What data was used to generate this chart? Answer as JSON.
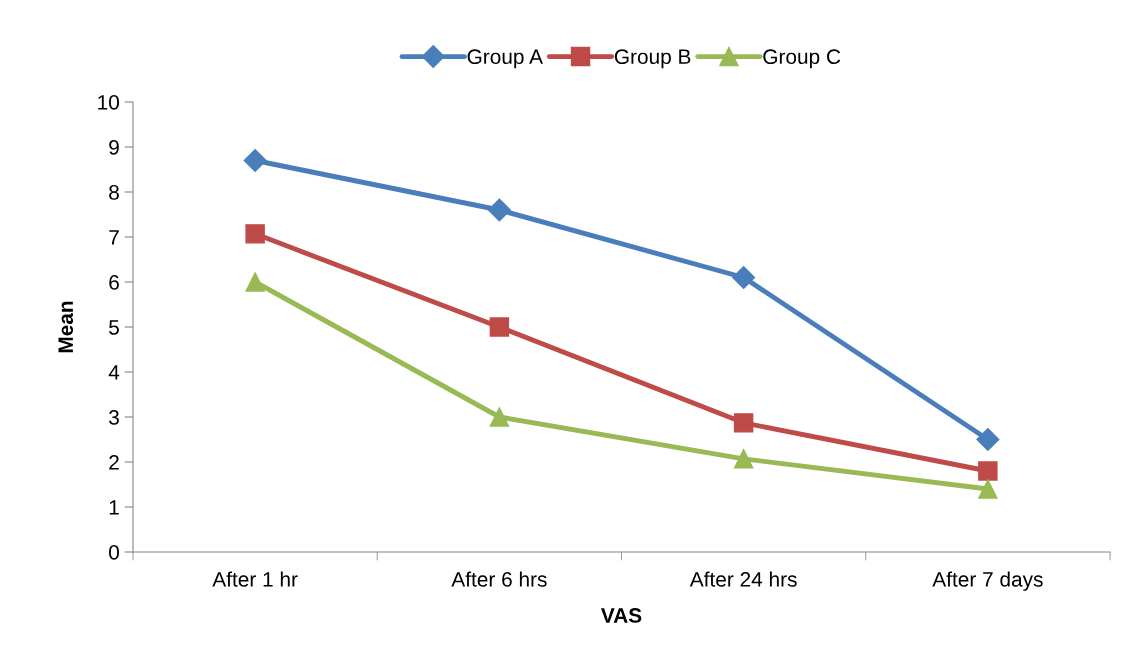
{
  "chart_data": {
    "type": "line",
    "xlabel": "VAS",
    "ylabel": "Mean",
    "categories": [
      "After 1 hr",
      "After 6 hrs",
      "After 24 hrs",
      "After 7 days"
    ],
    "series": [
      {
        "name": "Group A",
        "color": "#4a7ebb",
        "marker": "diamond",
        "values": [
          8.7,
          7.6,
          6.1,
          2.5
        ]
      },
      {
        "name": "Group B",
        "color": "#be4b48",
        "marker": "square",
        "values": [
          7.07,
          5.0,
          2.87,
          1.8
        ]
      },
      {
        "name": "Group C",
        "color": "#98b954",
        "marker": "triangle",
        "values": [
          6.0,
          3.0,
          2.07,
          1.4
        ]
      }
    ],
    "ylim": [
      0,
      10
    ],
    "yticks": [
      0,
      1,
      2,
      3,
      4,
      5,
      6,
      7,
      8,
      9,
      10
    ],
    "grid": false,
    "legend": "top",
    "line_style": "solid"
  }
}
